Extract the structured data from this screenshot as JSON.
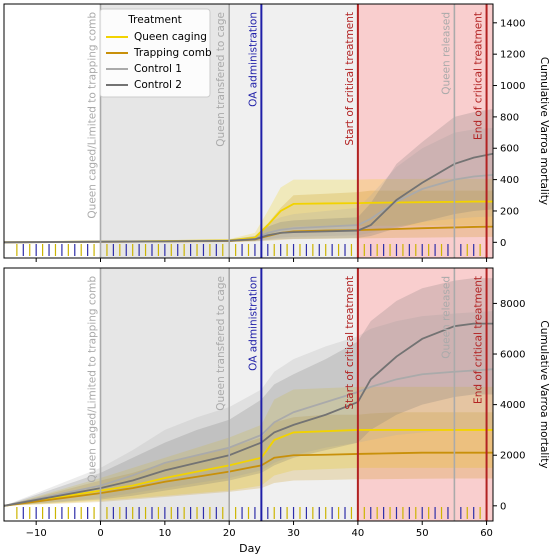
{
  "colors": {
    "queen_caging": "#f2d300",
    "trapping_comb": "#c8900a",
    "control_1": "#aaaaaa",
    "control_2": "#737373",
    "oa_line": "#1f1fa8",
    "critical_line": "#b22222",
    "grey_line": "#aaaaaa",
    "critical_fill": "#f4a6a6",
    "gray_zone": "#d9d9d9",
    "rug_yellow": "#ccb400",
    "rug_blue": "#2d2da8"
  },
  "legend": {
    "title": "Treatment",
    "items": [
      "Queen caging",
      "Trapping comb",
      "Control 1",
      "Control 2"
    ]
  },
  "xlabel": "Day",
  "ylabel": "Cumulative Varroa mortality",
  "events": [
    {
      "day": 0,
      "label": "Queen caged/Limited to trapping comb",
      "kind": "grey"
    },
    {
      "day": 20,
      "label": "Queen transfered to cage",
      "kind": "grey"
    },
    {
      "day": 25,
      "label": "OA administration",
      "kind": "oa"
    },
    {
      "day": 40,
      "label": "Start of critical treatment",
      "kind": "critical"
    },
    {
      "day": 55,
      "label": "Queen released",
      "kind": "grey"
    },
    {
      "day": 60,
      "label": "End of critical treatment",
      "kind": "critical"
    }
  ],
  "rug": {
    "yellow_days": [
      -13,
      -11,
      -9,
      -7,
      -5,
      -3,
      -1,
      1,
      3,
      5,
      7,
      9,
      11,
      13,
      15,
      17,
      19,
      21,
      23,
      27,
      29,
      31,
      33,
      35,
      37,
      39,
      41,
      43,
      45,
      47,
      49,
      51,
      53,
      57,
      59
    ],
    "blue_days": [
      -12,
      -10,
      -8,
      -6,
      -4,
      -2,
      2,
      4,
      6,
      8,
      10,
      12,
      14,
      16,
      18,
      22,
      24,
      26,
      28,
      30,
      32,
      34,
      36,
      38,
      42,
      44,
      46,
      48,
      50,
      52,
      54,
      56,
      58
    ]
  },
  "chart_data": [
    {
      "type": "line",
      "xlim": [
        -15,
        61
      ],
      "ylim": [
        -100,
        1520
      ],
      "x_ticks": [],
      "y_ticks": [
        0,
        200,
        400,
        600,
        800,
        1000,
        1200,
        1400
      ],
      "x": [
        -15,
        0,
        10,
        20,
        24,
        26,
        28,
        30,
        35,
        40,
        42,
        46,
        50,
        55,
        58,
        61
      ],
      "series": [
        {
          "name": "Queen caging",
          "values": [
            0,
            5,
            8,
            12,
            30,
            110,
            200,
            245,
            248,
            250,
            252,
            254,
            256,
            258,
            260,
            260
          ],
          "lower": [
            0,
            2,
            4,
            6,
            10,
            40,
            80,
            100,
            102,
            104,
            105,
            106,
            107,
            108,
            108,
            108
          ],
          "upper": [
            0,
            10,
            14,
            20,
            60,
            200,
            350,
            400,
            400,
            400,
            402,
            404,
            405,
            405,
            405,
            405
          ]
        },
        {
          "name": "Trapping comb",
          "values": [
            0,
            3,
            5,
            8,
            18,
            40,
            60,
            70,
            75,
            78,
            80,
            85,
            90,
            95,
            98,
            100
          ],
          "lower": [
            0,
            1,
            2,
            3,
            5,
            10,
            15,
            20,
            22,
            25,
            26,
            28,
            30,
            32,
            33,
            35
          ],
          "upper": [
            0,
            6,
            10,
            15,
            35,
            120,
            220,
            300,
            310,
            320,
            330,
            330,
            330,
            330,
            330,
            330
          ]
        },
        {
          "name": "Control 1",
          "values": [
            0,
            4,
            6,
            10,
            20,
            60,
            80,
            90,
            100,
            110,
            150,
            260,
            340,
            400,
            420,
            430
          ],
          "lower": [
            0,
            2,
            3,
            5,
            8,
            20,
            30,
            35,
            40,
            45,
            60,
            100,
            130,
            150,
            160,
            165
          ],
          "upper": [
            0,
            8,
            12,
            18,
            40,
            120,
            160,
            180,
            200,
            220,
            300,
            480,
            600,
            700,
            720,
            730
          ]
        },
        {
          "name": "Control 2",
          "values": [
            0,
            4,
            6,
            10,
            20,
            45,
            60,
            65,
            70,
            75,
            110,
            270,
            380,
            500,
            540,
            565
          ],
          "lower": [
            0,
            2,
            3,
            5,
            8,
            15,
            20,
            22,
            25,
            28,
            40,
            90,
            130,
            180,
            200,
            210
          ],
          "upper": [
            0,
            8,
            12,
            18,
            40,
            100,
            130,
            140,
            150,
            160,
            250,
            500,
            640,
            800,
            830,
            850
          ]
        }
      ]
    },
    {
      "type": "line",
      "xlim": [
        -15,
        61
      ],
      "ylim": [
        -600,
        9400
      ],
      "x_ticks": [
        -10,
        0,
        10,
        20,
        30,
        40,
        50,
        60
      ],
      "y_ticks": [
        0,
        2000,
        4000,
        6000,
        8000
      ],
      "x": [
        -15,
        0,
        5,
        10,
        15,
        20,
        25,
        27,
        30,
        35,
        40,
        42,
        46,
        50,
        55,
        58,
        61
      ],
      "series": [
        {
          "name": "Queen caging",
          "values": [
            0,
            600,
            800,
            1100,
            1350,
            1600,
            1900,
            2600,
            2900,
            2950,
            3000,
            3000,
            3000,
            3000,
            3000,
            3000,
            3000
          ],
          "lower": [
            0,
            200,
            300,
            400,
            500,
            600,
            800,
            1200,
            1400,
            1450,
            1500,
            1500,
            1500,
            1500,
            1500,
            1500,
            1500
          ],
          "upper": [
            0,
            1100,
            1500,
            1900,
            2300,
            2700,
            3200,
            4200,
            4600,
            4650,
            4700,
            4700,
            4700,
            4700,
            4700,
            4700,
            4700
          ]
        },
        {
          "name": "Trapping comb",
          "values": [
            0,
            500,
            700,
            950,
            1150,
            1350,
            1600,
            1900,
            2000,
            2020,
            2050,
            2060,
            2080,
            2100,
            2100,
            2100,
            2100
          ],
          "lower": [
            0,
            150,
            250,
            350,
            450,
            550,
            700,
            900,
            1000,
            1020,
            1050,
            1050,
            1060,
            1070,
            1080,
            1080,
            1080
          ],
          "upper": [
            0,
            1000,
            1300,
            1700,
            2000,
            2300,
            2700,
            3300,
            3500,
            3600,
            3600,
            3650,
            3700,
            3700,
            3700,
            3700,
            3700
          ]
        },
        {
          "name": "Control 1",
          "values": [
            0,
            800,
            1200,
            1700,
            2000,
            2300,
            2800,
            3300,
            3700,
            4100,
            4500,
            4700,
            5000,
            5200,
            5300,
            5350,
            5400
          ],
          "lower": [
            0,
            300,
            500,
            700,
            900,
            1100,
            1400,
            1700,
            2000,
            2300,
            2500,
            2600,
            2800,
            2900,
            3000,
            3000,
            3000
          ],
          "upper": [
            0,
            1500,
            2200,
            3000,
            3500,
            3900,
            4600,
            5300,
            5800,
            6300,
            6700,
            7000,
            7300,
            7500,
            7600,
            7650,
            7700
          ]
        },
        {
          "name": "Control 2",
          "values": [
            0,
            700,
            1000,
            1400,
            1700,
            2000,
            2500,
            2900,
            3200,
            3600,
            4100,
            5000,
            5900,
            6600,
            7100,
            7200,
            7200
          ],
          "lower": [
            0,
            250,
            400,
            600,
            800,
            1000,
            1300,
            1600,
            1900,
            2200,
            2500,
            3000,
            3600,
            4000,
            4300,
            4400,
            4400
          ],
          "upper": [
            0,
            1300,
            1900,
            2500,
            3000,
            3400,
            4200,
            4800,
            5200,
            5800,
            6500,
            7300,
            8100,
            8600,
            8900,
            9000,
            9000
          ]
        }
      ]
    }
  ]
}
